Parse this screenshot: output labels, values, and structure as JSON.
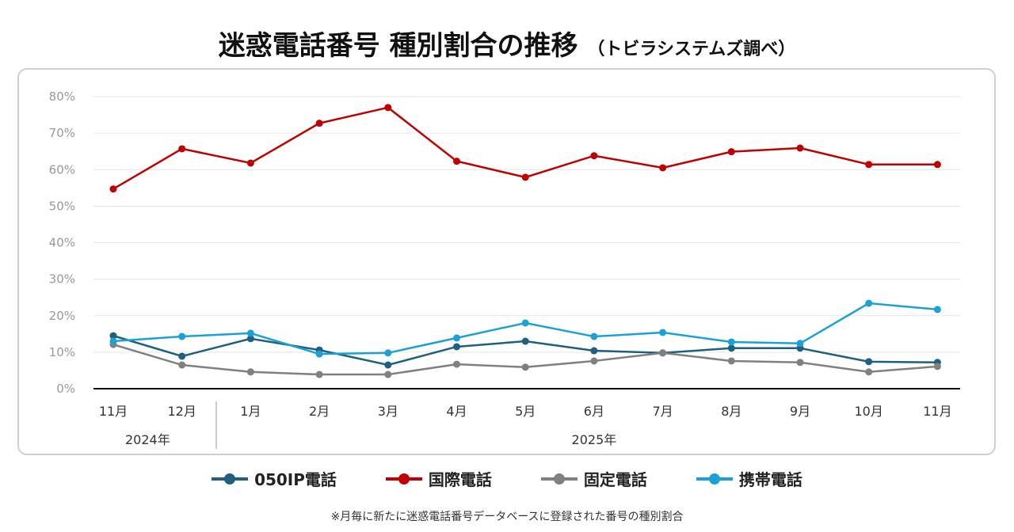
{
  "title": "迷惑電話番号 種別割合の推移",
  "subtitle": "（トビラシステムズ調べ）",
  "footnote": "※月毎に新たに迷惑電話番号データベースに登録された番号の種別割合",
  "chart_data": {
    "type": "line",
    "categories": [
      "11月",
      "12月",
      "1月",
      "2月",
      "3月",
      "4月",
      "5月",
      "6月",
      "7月",
      "8月",
      "9月",
      "10月",
      "11月"
    ],
    "year_groups": [
      {
        "label": "2024年",
        "span": 2
      },
      {
        "label": "2025年",
        "span": 11
      }
    ],
    "ylim": [
      0,
      80
    ],
    "yticks": [
      "0%",
      "10%",
      "20%",
      "30%",
      "40%",
      "50%",
      "60%",
      "70%",
      "80%"
    ],
    "grid": true,
    "legend_position": "bottom",
    "series": [
      {
        "name": "050IP電話",
        "color": "#1f5f80",
        "values": [
          14.5,
          8.9,
          13.7,
          10.6,
          6.5,
          11.5,
          13.0,
          10.4,
          9.8,
          11.1,
          11.1,
          7.4,
          7.2
        ]
      },
      {
        "name": "国際電話",
        "color": "#c00000",
        "values": [
          54.7,
          65.7,
          61.8,
          72.7,
          77.0,
          62.3,
          57.9,
          63.8,
          60.5,
          64.9,
          65.9,
          61.4,
          61.4
        ]
      },
      {
        "name": "固定電話",
        "color": "#808080",
        "values": [
          12.1,
          6.5,
          4.6,
          3.9,
          3.9,
          6.7,
          5.9,
          7.6,
          9.8,
          7.6,
          7.2,
          4.6,
          6.1
        ]
      },
      {
        "name": "携帯電話",
        "color": "#1ba1d6",
        "values": [
          13.0,
          14.3,
          15.2,
          9.5,
          9.8,
          13.9,
          18.0,
          14.3,
          15.4,
          12.8,
          12.4,
          23.4,
          21.7
        ]
      }
    ]
  }
}
